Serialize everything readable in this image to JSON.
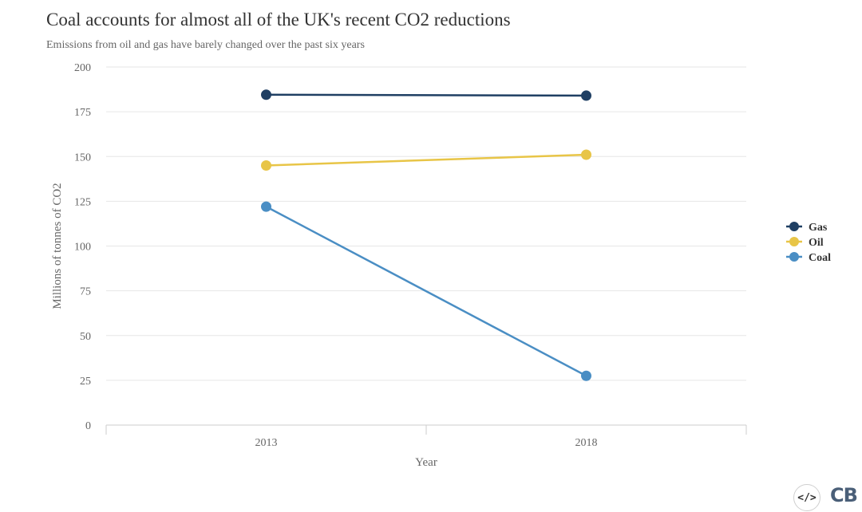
{
  "header": {
    "title": "Coal accounts for almost all of the UK's recent CO2 reductions",
    "subtitle": "Emissions from oil and gas have barely changed over the past six years"
  },
  "chart_data": {
    "type": "line",
    "x": [
      "2013",
      "2018"
    ],
    "xlabel": "Year",
    "ylabel": "Millions of tonnes of CO2",
    "ylim": [
      0,
      200
    ],
    "yticks": [
      0,
      25,
      50,
      75,
      100,
      125,
      150,
      175,
      200
    ],
    "grid": true,
    "legend": "right",
    "series": [
      {
        "name": "Gas",
        "values": [
          184.5,
          184
        ],
        "color": "#1f3f63"
      },
      {
        "name": "Oil",
        "values": [
          145,
          151
        ],
        "color": "#e8c547"
      },
      {
        "name": "Coal",
        "values": [
          122,
          27.5
        ],
        "color": "#4a8ec4"
      }
    ]
  },
  "branding": {
    "embed_label": "</>",
    "logo_text": "CB"
  }
}
